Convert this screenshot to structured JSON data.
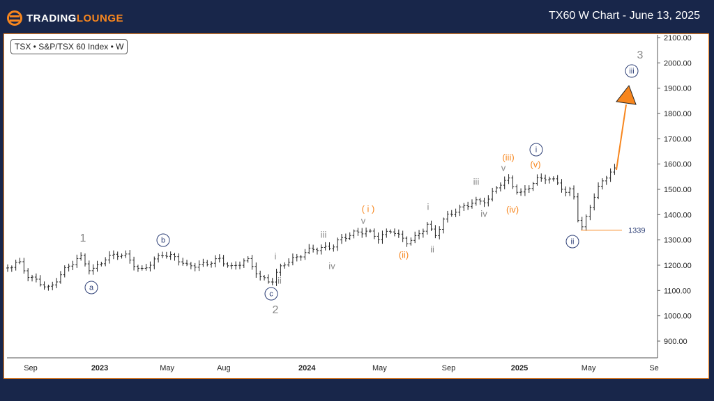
{
  "header": {
    "logo_a": "TRADING",
    "logo_b": "LOUNGE",
    "title": "TX60 W Chart - June 13, 2025"
  },
  "ticker": "TSX • S&P/TSX 60 Index • W",
  "chart_data": {
    "type": "line",
    "style": "ohlc-bars",
    "title": "TX60 W Chart - June 13, 2025",
    "ylim": [
      850,
      2100
    ],
    "y_ticks": [
      "2100.00",
      "2000.00",
      "1900.00",
      "1800.00",
      "1700.00",
      "1600.00",
      "1500.00",
      "1400.00",
      "1300.00",
      "1200.00",
      "1100.00",
      "1000.00",
      "900.00"
    ],
    "x_ticks": [
      "Sep",
      "2023",
      "May",
      "Aug",
      "2024",
      "May",
      "Sep",
      "2025",
      "May",
      "Se"
    ],
    "key_points_months_since_sep2022": [
      [
        -1.3,
        1189
      ],
      [
        -0.7,
        1216
      ],
      [
        -0.2,
        1161
      ],
      [
        0.6,
        1126
      ],
      [
        1.1,
        1106
      ],
      [
        1.8,
        1175
      ],
      [
        2.8,
        1236
      ],
      [
        3.4,
        1175
      ],
      [
        4.2,
        1225
      ],
      [
        4.8,
        1244
      ],
      [
        5.4,
        1236
      ],
      [
        6.2,
        1175
      ],
      [
        7.4,
        1244
      ],
      [
        8.2,
        1230
      ],
      [
        8.8,
        1197
      ],
      [
        9.8,
        1203
      ],
      [
        10.6,
        1225
      ],
      [
        11.4,
        1189
      ],
      [
        12.2,
        1225
      ],
      [
        13.0,
        1148
      ],
      [
        13.6,
        1134
      ],
      [
        14.2,
        1203
      ],
      [
        15.0,
        1230
      ],
      [
        15.8,
        1263
      ],
      [
        17.0,
        1271
      ],
      [
        17.4,
        1299
      ],
      [
        18.2,
        1327
      ],
      [
        19.0,
        1335
      ],
      [
        19.6,
        1307
      ],
      [
        20.4,
        1340
      ],
      [
        21.2,
        1291
      ],
      [
        21.8,
        1313
      ],
      [
        22.4,
        1362
      ],
      [
        22.8,
        1313
      ],
      [
        23.4,
        1390
      ],
      [
        24.2,
        1423
      ],
      [
        25.0,
        1450
      ],
      [
        25.8,
        1456
      ],
      [
        26.4,
        1519
      ],
      [
        27.0,
        1539
      ],
      [
        27.6,
        1478
      ],
      [
        28.6,
        1539
      ],
      [
        29.0,
        1547
      ],
      [
        29.8,
        1527
      ],
      [
        30.2,
        1483
      ],
      [
        30.6,
        1505
      ],
      [
        30.9,
        1382
      ],
      [
        31.1,
        1339
      ],
      [
        31.6,
        1437
      ],
      [
        32.2,
        1527
      ],
      [
        32.6,
        1560
      ],
      [
        33.2,
        1588
      ]
    ],
    "projection": {
      "from": 1588,
      "to": 1910,
      "label": "(iii) / 3"
    },
    "level": {
      "value": "1339"
    },
    "wave_labels": [
      "1",
      "a",
      "b",
      "c",
      "2",
      "i",
      "ii",
      "iii",
      "iv",
      "v",
      "( i )",
      "(ii)",
      "i",
      "ii",
      "iii",
      "iv",
      "v",
      "(iii)",
      "(iv)",
      "(v)",
      "i",
      "ii",
      "3",
      "iii"
    ],
    "colors": {
      "orange": "#f7861e",
      "navy": "#2c3e75",
      "gray": "#888888",
      "bars": "#222222"
    }
  }
}
